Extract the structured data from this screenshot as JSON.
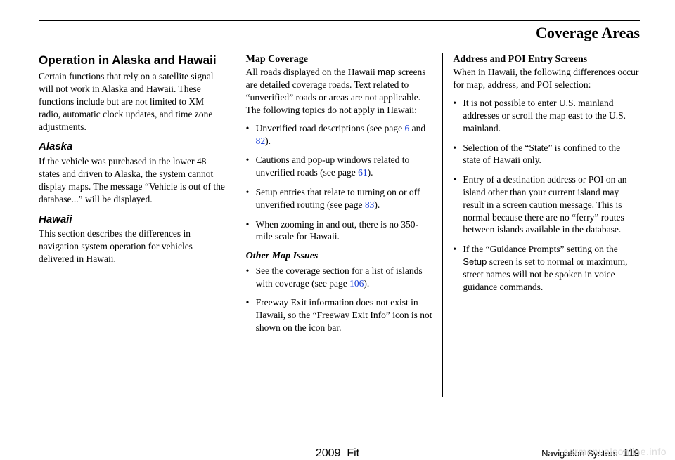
{
  "page_title": "Coverage Areas",
  "col1": {
    "heading": "Operation in Alaska and Hawaii",
    "intro": "Certain functions that rely on a satellite signal will not work in Alaska and Hawaii. These functions include but are not limited to XM radio, automatic clock updates, and time zone adjustments.",
    "alaska_h": "Alaska",
    "alaska_p": "If the vehicle was purchased in the lower 48 states and driven to Alaska, the system cannot display maps. The message “Vehicle is out of the database...” will be displayed.",
    "hawaii_h": "Hawaii",
    "hawaii_p": "This section describes the differences in navigation system operation for vehicles delivered in Hawaii."
  },
  "col2": {
    "mapcov_h": "Map Coverage",
    "mapcov_p_a": "All roads displayed on the Hawaii ",
    "mapcov_p_span": "map",
    "mapcov_p_b": " screens are detailed coverage roads. Text related to “unverified” roads or areas are not applicable. The following topics do not apply in Hawaii:",
    "b1_a": "Unverified road descriptions (see page ",
    "b1_l1": "6",
    "b1_mid": " and ",
    "b1_l2": "82",
    "b1_b": ").",
    "b2_a": "Cautions and pop-up windows related to unverified roads (see page ",
    "b2_l": "61",
    "b2_b": ").",
    "b3_a": "Setup entries that relate to turning on or off unverified routing (see page ",
    "b3_l": "83",
    "b3_b": ").",
    "b4": "When zooming in and out, there is no 350-mile scale for Hawaii.",
    "other_h": "Other Map Issues",
    "b5_a": "See the coverage section for a list of islands with coverage (see page ",
    "b5_l": "106",
    "b5_b": ").",
    "b6": "Freeway Exit information does not exist in Hawaii, so the “Freeway Exit Info” icon is not shown on the icon bar."
  },
  "col3": {
    "addr_h": "Address and POI Entry Screens",
    "addr_p": "When in Hawaii, the following differences occur for map, address, and POI selection:",
    "c1": "It is not possible to enter U.S. mainland addresses or scroll the map east to the U.S. mainland.",
    "c2": "Selection of the “State” is confined to the state of Hawaii only.",
    "c3": "Entry of a destination address or POI on an island other than your current island may result in a screen caution message. This is normal because there are no “ferry” routes between islands available in the database.",
    "c4_a": "If the “Guidance Prompts” setting on the ",
    "c4_span": "Setup",
    "c4_b": " screen is set to normal or maximum, street names will not be spoken in voice guidance commands."
  },
  "footer": {
    "center": "2009  Fit",
    "right_label": "Navigation System",
    "right_page": "119"
  },
  "watermark": "carmanualsonline.info"
}
